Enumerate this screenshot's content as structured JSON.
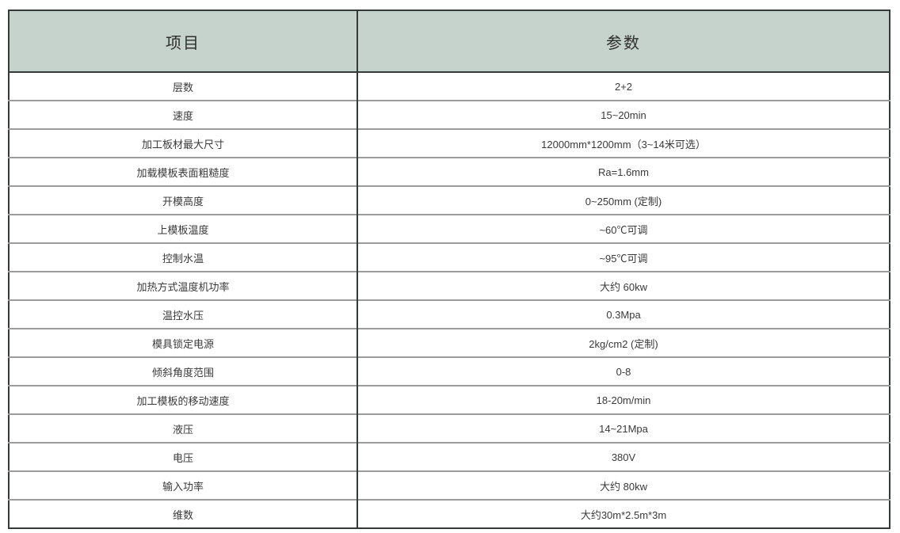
{
  "table": {
    "columns": [
      {
        "label": "项目"
      },
      {
        "label": "参数"
      }
    ],
    "rows": [
      {
        "item": "层数",
        "value": "2+2"
      },
      {
        "item": "速度",
        "value": "15~20min"
      },
      {
        "item": "加工板材最大尺寸",
        "value": "12000mm*1200mm（3~14米可选）"
      },
      {
        "item": "加载模板表面粗糙度",
        "value": "Ra=1.6mm"
      },
      {
        "item": "开模高度",
        "value": "0~250mm (定制)"
      },
      {
        "item": "上模板温度",
        "value": "~60℃可调"
      },
      {
        "item": "控制水温",
        "value": "~95℃可调"
      },
      {
        "item": "加热方式温度机功率",
        "value": "大约 60kw"
      },
      {
        "item": "温控水压",
        "value": "0.3Mpa"
      },
      {
        "item": "模具锁定电源",
        "value": "2kg/cm2 (定制)"
      },
      {
        "item": "倾斜角度范围",
        "value": "0-8"
      },
      {
        "item": "加工模板的移动速度",
        "value": "18-20m/min"
      },
      {
        "item": "液压",
        "value": "14~21Mpa"
      },
      {
        "item": "电压",
        "value": "380V"
      },
      {
        "item": "输入功率",
        "value": "大约 80kw"
      },
      {
        "item": "维数",
        "value": "大约30m*2.5m*3m"
      }
    ],
    "colors": {
      "header_bg": "#c6d2cc",
      "border_dark": "#343a38",
      "border_light": "#9b9b9b",
      "text": "#3a3a3a"
    }
  }
}
